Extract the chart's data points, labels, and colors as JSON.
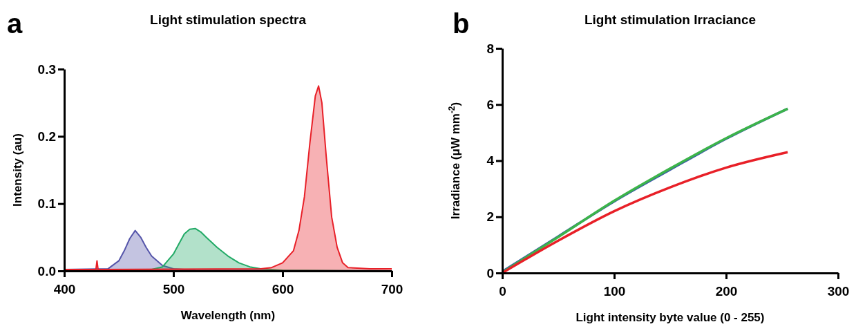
{
  "chart_data": [
    {
      "type": "area",
      "title": "Light stimulation spectra",
      "xlabel": "Wavelength (nm)",
      "ylabel": "Intensity (au)",
      "annotations": [
        "a"
      ],
      "xlim": [
        400,
        700
      ],
      "xticks": [
        400,
        500,
        600,
        700
      ],
      "ylim": [
        0,
        0.3
      ],
      "yticks": [
        {
          "value": 0,
          "label": "0.0"
        },
        {
          "value": 0.1,
          "label": "0.1"
        },
        {
          "value": 0.2,
          "label": "0.2"
        },
        {
          "value": 0.3,
          "label": "0.3"
        }
      ],
      "grid": false,
      "series": [
        {
          "color": "#5555aa",
          "x": [
            400,
            440,
            450,
            455,
            460,
            465,
            470,
            475,
            480,
            490,
            500,
            520,
            700
          ],
          "values": [
            0.002,
            0.003,
            0.015,
            0.03,
            0.048,
            0.06,
            0.05,
            0.035,
            0.022,
            0.008,
            0.003,
            0.001,
            0
          ]
        },
        {
          "color": "#22aa66",
          "x": [
            400,
            480,
            490,
            500,
            505,
            510,
            515,
            520,
            525,
            530,
            540,
            550,
            560,
            570,
            580,
            600,
            700
          ],
          "values": [
            0,
            0.002,
            0.006,
            0.025,
            0.04,
            0.055,
            0.062,
            0.063,
            0.058,
            0.05,
            0.035,
            0.022,
            0.012,
            0.006,
            0.003,
            0.001,
            0
          ]
        },
        {
          "color": "#e82028",
          "x": [
            400,
            429,
            430,
            431,
            580,
            590,
            600,
            610,
            615,
            620,
            625,
            630,
            633,
            636,
            640,
            645,
            650,
            655,
            660,
            680,
            700
          ],
          "values": [
            0.002,
            0.002,
            0.015,
            0.002,
            0.003,
            0.005,
            0.012,
            0.03,
            0.06,
            0.11,
            0.19,
            0.26,
            0.275,
            0.25,
            0.17,
            0.08,
            0.035,
            0.012,
            0.005,
            0.003,
            0.003
          ]
        }
      ]
    },
    {
      "type": "line",
      "title": "Light stimulation Irraciance",
      "xlabel": "Light intensity byte value (0 - 255)",
      "ylabel": "Irradiance (μW mm$^{-2}$)",
      "annotations": [
        "b"
      ],
      "xlim": [
        0,
        300
      ],
      "xticks": [
        0,
        100,
        200,
        300
      ],
      "ylim": [
        0,
        8
      ],
      "yticks": [
        0,
        2,
        4,
        6,
        8
      ],
      "grid": false,
      "marker": "none",
      "series": [
        {
          "color": "#3a5aa8",
          "x": [
            0,
            50,
            100,
            150,
            200,
            255
          ],
          "values": [
            0.05,
            1.3,
            2.55,
            3.68,
            4.78,
            5.85
          ]
        },
        {
          "color": "#3cb44a",
          "x": [
            0,
            50,
            100,
            150,
            200,
            255
          ],
          "values": [
            0.02,
            1.28,
            2.57,
            3.72,
            4.8,
            5.85
          ]
        },
        {
          "color": "#e82028",
          "x": [
            0,
            50,
            100,
            150,
            200,
            255
          ],
          "values": [
            0,
            1.15,
            2.2,
            3.05,
            3.75,
            4.3
          ]
        }
      ]
    }
  ]
}
